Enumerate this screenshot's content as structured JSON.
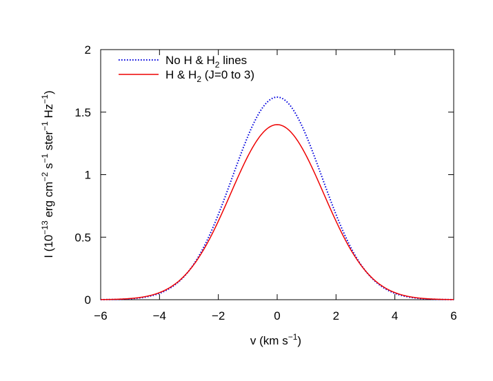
{
  "chart_data": {
    "type": "line",
    "xlim": [
      -6,
      6
    ],
    "ylim": [
      0,
      2
    ],
    "xticks": [
      -6,
      -4,
      -2,
      0,
      2,
      4,
      6
    ],
    "xtick_labels": [
      "−6",
      "−4",
      "−2",
      "0",
      "2",
      "4",
      "6"
    ],
    "yticks": [
      0,
      0.5,
      1,
      1.5,
      2
    ],
    "ytick_labels": [
      "0",
      "0.5",
      "1",
      "1.5",
      "2"
    ],
    "xlabel": {
      "pre": "v (km s",
      "sup": "−1",
      "post": ")"
    },
    "ylabel": {
      "p1": "I (10",
      "s1": "−13",
      "p2": " erg cm",
      "s2": "−2",
      "p3": " s",
      "s3": "−1",
      "p4": " ster",
      "s4": "−1",
      "p5": " Hz",
      "s5": "−1",
      "p6": ")"
    },
    "grid": false,
    "legend_position": "top-left",
    "series": [
      {
        "legend": {
          "pre": "No H & H",
          "sub": "2",
          "post": " lines"
        },
        "color": "#0000dd",
        "style": "dotted",
        "peak": 1.62,
        "sigma": 1.52
      },
      {
        "legend": {
          "pre": "H & H",
          "sub": "2",
          "post": " (J=0 to 3)"
        },
        "color": "#ee0000",
        "style": "solid",
        "peak": 1.4,
        "sigma": 1.58
      }
    ]
  }
}
